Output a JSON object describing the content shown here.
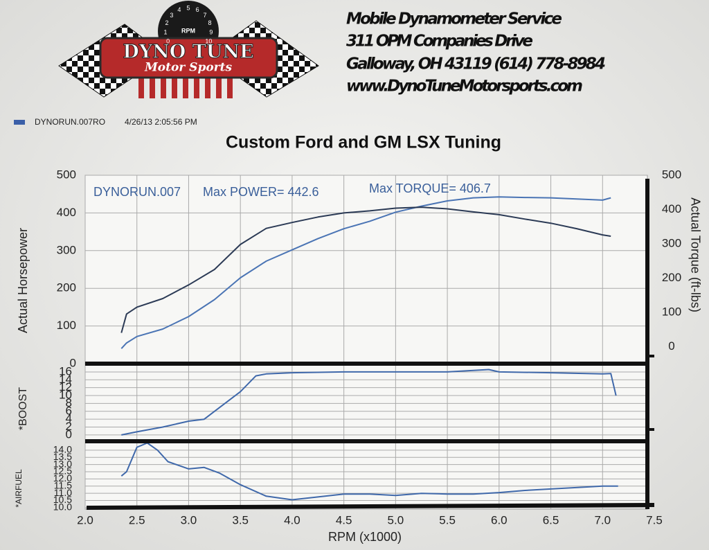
{
  "header": {
    "logo": {
      "dial_numbers": [
        "0",
        "1",
        "2",
        "3",
        "4",
        "5",
        "6",
        "7",
        "8",
        "9",
        "10"
      ],
      "dial_label": "RPM",
      "name": "DYNO TUNE",
      "tagline": "Motor Sports"
    },
    "address_lines": [
      "Mobile Dynamometer Service",
      "311 OPM Companies Drive",
      "Galloway, OH  43119   (614)  778-8984",
      "www.DynoTuneMotorsports.com"
    ]
  },
  "run": {
    "name": "DYNORUN.007RO",
    "date": "4/26/13 2:05:56 PM",
    "color": "#3b5fa8"
  },
  "chart_data": [
    {
      "type": "line",
      "title": "Custom Ford and GM LSX Tuning",
      "annotations": [
        "DYNORUN.007",
        "Max POWER= 442.6",
        "Max TORQUE= 406.7"
      ],
      "ylabel": "Actual Horsepower",
      "y2label": "Actual Torque (ft-lbs)",
      "x": [
        2.35,
        2.4,
        2.5,
        2.75,
        3,
        3.25,
        3.5,
        3.75,
        4,
        4.25,
        4.5,
        4.75,
        5,
        5.25,
        5.5,
        5.75,
        6,
        6.25,
        6.5,
        6.75,
        7,
        7.08
      ],
      "xlim": [
        2,
        7.5
      ],
      "xticks": [
        2,
        2.5,
        3,
        3.5,
        4,
        4.5,
        5,
        5.5,
        6,
        6.5,
        7,
        7.5
      ],
      "ylim": [
        0,
        500
      ],
      "yticks": [
        0,
        100,
        200,
        300,
        400,
        500
      ],
      "y2lim": [
        -50,
        500
      ],
      "y2ticks": [
        0,
        100,
        200,
        300,
        400,
        500
      ],
      "grid": true,
      "series": [
        {
          "color": "#4a74b4",
          "values": [
            40,
            55,
            72,
            92,
            125,
            170,
            228,
            272,
            302,
            332,
            358,
            378,
            402,
            418,
            432,
            440,
            442.6,
            441,
            440,
            437,
            434,
            440
          ]
        },
        {
          "color": "#2b3a55",
          "axis": "y2",
          "values": [
            40,
            95,
            115,
            140,
            180,
            225,
            298,
            345,
            362,
            378,
            390,
            396,
            404,
            406.7,
            402,
            393,
            385,
            372,
            360,
            344,
            326,
            322
          ]
        }
      ]
    },
    {
      "type": "line",
      "ylabel": "*BOOST",
      "x": [
        2.35,
        2.5,
        2.75,
        3,
        3.15,
        3.25,
        3.5,
        3.65,
        3.75,
        4,
        4.5,
        5,
        5.5,
        5.9,
        6,
        6.5,
        7,
        7.08,
        7.13
      ],
      "xlim": [
        2,
        7.5
      ],
      "xticks": [
        2,
        2.5,
        3,
        3.5,
        4,
        4.5,
        5,
        5.5,
        6,
        6.5,
        7,
        7.5
      ],
      "ylim": [
        -1.6,
        18.1
      ],
      "yticks": [
        0,
        2,
        4,
        6,
        8,
        10,
        12,
        14,
        16
      ],
      "grid": true,
      "series": [
        {
          "color": "#3f68aa",
          "values": [
            0,
            0.8,
            2,
            3.5,
            4,
            6,
            11,
            15,
            15.5,
            15.8,
            16,
            16,
            16,
            16.6,
            16,
            15.8,
            15.5,
            15.6,
            10
          ]
        }
      ]
    },
    {
      "type": "line",
      "ylabel": "*AIRFUEL",
      "xlabel": "RPM (x1000)",
      "x": [
        2.35,
        2.4,
        2.5,
        2.6,
        2.7,
        2.8,
        3,
        3.15,
        3.3,
        3.5,
        3.75,
        4,
        4.25,
        4.5,
        4.75,
        5,
        5.25,
        5.5,
        5.75,
        6,
        6.25,
        6.5,
        7,
        7.15
      ],
      "xlim": [
        2,
        7.5
      ],
      "xticks": [
        {
          "value": 2,
          "label": "2.0"
        },
        {
          "value": 2.5,
          "label": "2.5"
        },
        {
          "value": 3,
          "label": "3.0"
        },
        {
          "value": 3.5,
          "label": "3.5"
        },
        {
          "value": 4,
          "label": "4.0"
        },
        {
          "value": 4.5,
          "label": "4.5"
        },
        {
          "value": 5,
          "label": "5.0"
        },
        {
          "value": 5.5,
          "label": "5.5"
        },
        {
          "value": 6,
          "label": "6.0"
        },
        {
          "value": 6.5,
          "label": "6.5"
        },
        {
          "value": 7,
          "label": "7.0"
        },
        {
          "value": 7.5,
          "label": "7.5"
        }
      ],
      "ylim": [
        9.9,
        14.62
      ],
      "yticks": [
        {
          "value": 10,
          "label": "10.0"
        },
        10.5,
        {
          "value": 11,
          "label": "11.0"
        },
        11.5,
        {
          "value": 12,
          "label": "12.0"
        },
        12.5,
        {
          "value": 13,
          "label": "13.0"
        },
        13.5,
        {
          "value": 14,
          "label": "14.0"
        }
      ],
      "grid": true,
      "series": [
        {
          "color": "#3f68aa",
          "values": [
            12.2,
            12.5,
            14.2,
            14.5,
            14,
            13.2,
            12.7,
            12.8,
            12.4,
            11.6,
            10.8,
            10.55,
            10.75,
            10.95,
            10.95,
            10.85,
            11,
            10.95,
            10.95,
            11.05,
            11.2,
            11.3,
            11.5,
            11.5
          ]
        }
      ]
    }
  ]
}
